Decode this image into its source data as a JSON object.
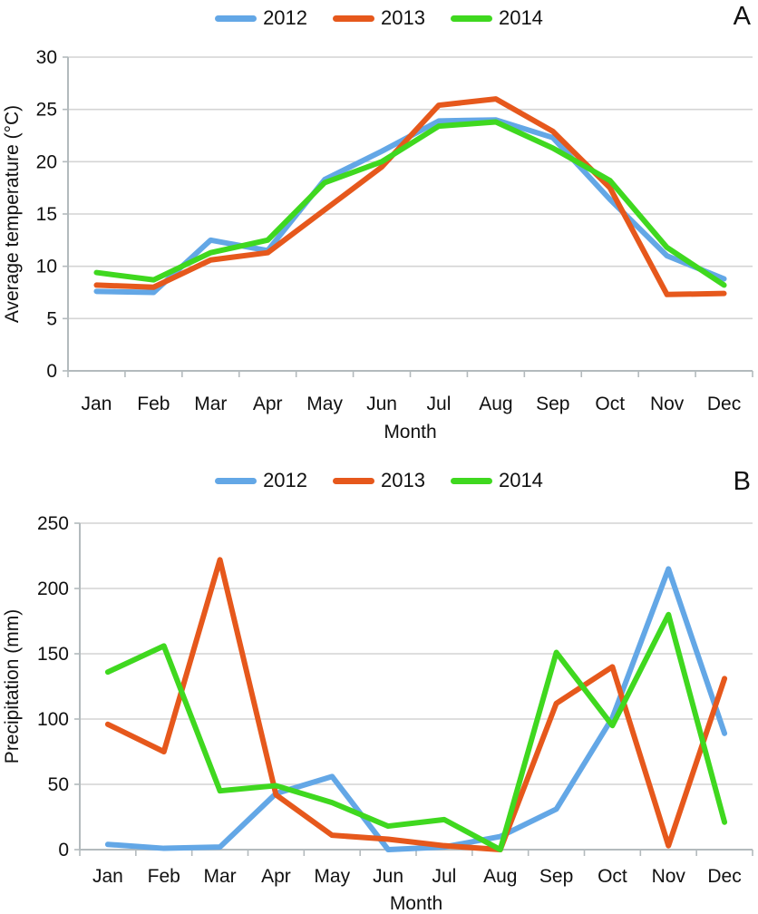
{
  "figure": {
    "panels": [
      {
        "letter": "A",
        "legend": [
          {
            "label": "2012",
            "color": "#63A7E6"
          },
          {
            "label": "2013",
            "color": "#E6581C"
          },
          {
            "label": "2014",
            "color": "#3FD81F"
          }
        ]
      },
      {
        "letter": "B",
        "legend": [
          {
            "label": "2012",
            "color": "#63A7E6"
          },
          {
            "label": "2013",
            "color": "#E6581C"
          },
          {
            "label": "2014",
            "color": "#3FD81F"
          }
        ]
      }
    ],
    "colors": {
      "series_2012": "#63A7E6",
      "series_2013": "#E6581C",
      "series_2014": "#3FD81F",
      "gridline": "#d4d4d4",
      "axis": "#b3babd",
      "text": "#111111"
    }
  },
  "chart_data": [
    {
      "type": "line",
      "panel_label": "A",
      "title": "",
      "categories": [
        "Jan",
        "Feb",
        "Mar",
        "Apr",
        "May",
        "Jun",
        "Jul",
        "Aug",
        "Sep",
        "Oct",
        "Nov",
        "Dec"
      ],
      "xlabel": "Month",
      "ylabel": "Average temperature (°C)",
      "ylim": [
        0,
        30
      ],
      "yticks": [
        0,
        5,
        10,
        15,
        20,
        25,
        30
      ],
      "grid": "horizontal",
      "legend_position": "top-center",
      "series": [
        {
          "name": "2012",
          "color": "#63A7E6",
          "values": [
            7.6,
            7.5,
            12.5,
            11.5,
            18.3,
            21.0,
            23.9,
            24.0,
            22.3,
            16.4,
            11.0,
            8.8
          ]
        },
        {
          "name": "2013",
          "color": "#E6581C",
          "values": [
            8.2,
            8.0,
            10.6,
            11.3,
            15.4,
            19.5,
            25.4,
            26.0,
            22.9,
            17.5,
            7.3,
            7.4
          ]
        },
        {
          "name": "2014",
          "color": "#3FD81F",
          "values": [
            9.4,
            8.7,
            11.3,
            12.5,
            18.0,
            20.0,
            23.4,
            23.8,
            21.3,
            18.2,
            11.8,
            8.2
          ]
        }
      ]
    },
    {
      "type": "line",
      "panel_label": "B",
      "title": "",
      "categories": [
        "Jan",
        "Feb",
        "Mar",
        "Apr",
        "May",
        "Jun",
        "Jul",
        "Aug",
        "Sep",
        "Oct",
        "Nov",
        "Dec"
      ],
      "xlabel": "Month",
      "ylabel": "Precipitation (mm)",
      "ylim": [
        0,
        250
      ],
      "yticks": [
        0,
        50,
        100,
        150,
        200,
        250
      ],
      "grid": "horizontal",
      "legend_position": "top-center",
      "series": [
        {
          "name": "2012",
          "color": "#63A7E6",
          "values": [
            4,
            1,
            2,
            43,
            56,
            0,
            2,
            10,
            31,
            101,
            215,
            89
          ]
        },
        {
          "name": "2013",
          "color": "#E6581C",
          "values": [
            96,
            75,
            222,
            42,
            11,
            8,
            3,
            0,
            112,
            140,
            3,
            131
          ]
        },
        {
          "name": "2014",
          "color": "#3FD81F",
          "values": [
            136,
            156,
            45,
            49,
            36,
            18,
            23,
            0,
            151,
            95,
            180,
            21
          ]
        }
      ]
    }
  ]
}
